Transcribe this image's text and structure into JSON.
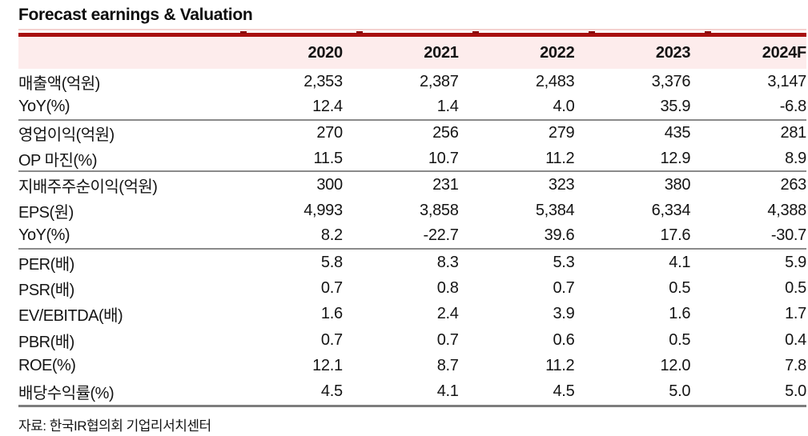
{
  "title": "Forecast earnings & Valuation",
  "table": {
    "columns": [
      "",
      "2020",
      "2021",
      "2022",
      "2023",
      "2024F"
    ],
    "rows": [
      {
        "label": "매출액(억원)",
        "values": [
          "2,353",
          "2,387",
          "2,483",
          "3,376",
          "3,147"
        ],
        "group_end": false
      },
      {
        "label": "YoY(%)",
        "values": [
          "12.4",
          "1.4",
          "4.0",
          "35.9",
          "-6.8"
        ],
        "group_end": true
      },
      {
        "label": "영업이익(억원)",
        "values": [
          "270",
          "256",
          "279",
          "435",
          "281"
        ],
        "group_end": false
      },
      {
        "label": "OP 마진(%)",
        "values": [
          "11.5",
          "10.7",
          "11.2",
          "12.9",
          "8.9"
        ],
        "group_end": true
      },
      {
        "label": "지배주주순이익(억원)",
        "values": [
          "300",
          "231",
          "323",
          "380",
          "263"
        ],
        "group_end": false
      },
      {
        "label": "EPS(원)",
        "values": [
          "4,993",
          "3,858",
          "5,384",
          "6,334",
          "4,388"
        ],
        "group_end": false
      },
      {
        "label": "YoY(%)",
        "values": [
          "8.2",
          "-22.7",
          "39.6",
          "17.6",
          "-30.7"
        ],
        "group_end": true
      },
      {
        "label": "PER(배)",
        "values": [
          "5.8",
          "8.3",
          "5.3",
          "4.1",
          "5.9"
        ],
        "group_end": false
      },
      {
        "label": "PSR(배)",
        "values": [
          "0.7",
          "0.8",
          "0.7",
          "0.5",
          "0.5"
        ],
        "group_end": false
      },
      {
        "label": "EV/EBITDA(배)",
        "values": [
          "1.6",
          "2.4",
          "3.9",
          "1.6",
          "1.7"
        ],
        "group_end": false
      },
      {
        "label": "PBR(배)",
        "values": [
          "0.7",
          "0.7",
          "0.6",
          "0.5",
          "0.4"
        ],
        "group_end": false
      },
      {
        "label": "ROE(%)",
        "values": [
          "12.1",
          "8.7",
          "11.2",
          "12.0",
          "7.8"
        ],
        "group_end": false
      },
      {
        "label": "배당수익률(%)",
        "values": [
          "4.5",
          "4.1",
          "4.5",
          "5.0",
          "5.0"
        ],
        "group_end": false
      }
    ]
  },
  "footer": {
    "source": "자료: 한국IR협의회 기업리서치센터"
  },
  "colors": {
    "accent_red": "#a80f0f",
    "header_bg": "#fdecec",
    "divider_gray": "#8a8a8a",
    "bottom_border": "#7d7d7d",
    "text": "#141414"
  }
}
